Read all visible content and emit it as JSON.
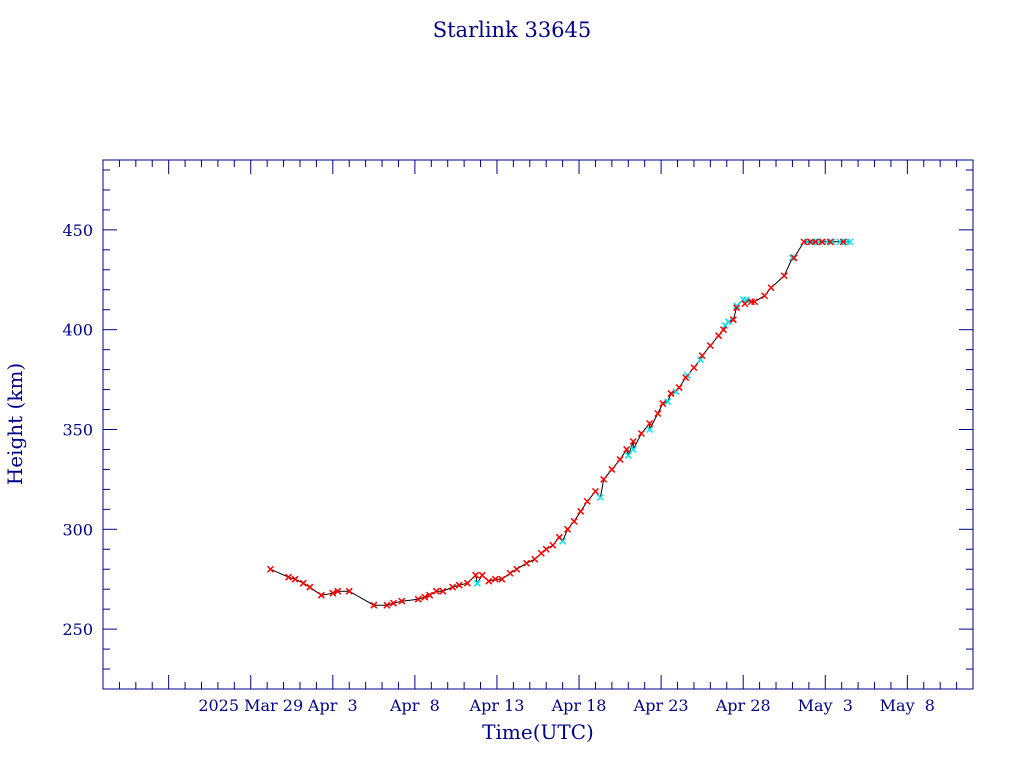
{
  "chart_data": {
    "type": "line",
    "title": "Starlink 33645",
    "xlabel": "Time(UTC)",
    "ylabel": "Height (km)",
    "x_unit": "day-of-year 2025",
    "xlim": [
      79,
      132
    ],
    "ylim": [
      220,
      485
    ],
    "x_ticks": [
      {
        "value": 88,
        "label": "2025 Mar 29"
      },
      {
        "value": 93,
        "label": "Apr  3"
      },
      {
        "value": 98,
        "label": "Apr  8"
      },
      {
        "value": 103,
        "label": "Apr 13"
      },
      {
        "value": 108,
        "label": "Apr 18"
      },
      {
        "value": 113,
        "label": "Apr 23"
      },
      {
        "value": 118,
        "label": "Apr 28"
      },
      {
        "value": 123,
        "label": "May  3"
      },
      {
        "value": 128,
        "label": "May  8"
      }
    ],
    "y_ticks": [
      250,
      300,
      350,
      400,
      450
    ],
    "grid": false,
    "legend": "none",
    "colors": {
      "axes": "#00008b",
      "line": "#000000",
      "marker_red": "#ff0000",
      "marker_cyan": "#00e5ee"
    },
    "series": [
      {
        "marker": "x",
        "x": [
          89.2,
          90.3,
          90.7,
          91.2,
          91.6,
          92.3,
          93.0,
          93.3,
          94.0,
          95.5,
          96.3,
          96.7,
          97.2,
          98.2,
          98.6,
          98.9,
          99.3,
          99.7,
          100.3,
          100.7,
          101.2,
          101.7,
          102.1,
          102.5,
          102.9,
          103.3,
          103.8,
          104.2,
          104.8,
          105.3,
          105.7,
          106.0,
          106.4,
          106.8,
          107.3,
          107.7,
          108.1,
          108.5,
          109.0,
          109.5,
          110.0,
          110.5,
          110.9,
          111.3,
          111.8,
          112.3,
          112.8,
          113.1,
          113.6,
          114.1,
          114.5,
          115.0,
          115.5,
          116.0,
          116.5,
          116.8,
          117.4,
          117.6,
          118.1,
          118.5,
          118.7,
          119.3,
          119.7,
          120.5,
          121.1,
          121.7,
          122.1,
          122.4,
          122.8,
          123.3,
          124.1
        ],
        "y": [
          280,
          276,
          275,
          273,
          271,
          267,
          268,
          269,
          269,
          262,
          262,
          263,
          264,
          265,
          266,
          267,
          269,
          269,
          271,
          272,
          273,
          277,
          277,
          274,
          275,
          275,
          278,
          280,
          283,
          285,
          288,
          290,
          292,
          296,
          300,
          304,
          309,
          314,
          319,
          325,
          330,
          335,
          340,
          344,
          348,
          353,
          358,
          363,
          368,
          371,
          376,
          381,
          387,
          392,
          397,
          400,
          405,
          411,
          413,
          414,
          414,
          417,
          421,
          427,
          436,
          444,
          444,
          444,
          444,
          444,
          444
        ]
      },
      {
        "marker": "x",
        "x": [
          101.8,
          107.0,
          109.3,
          111.0,
          111.3,
          112.3,
          113.4,
          113.9,
          114.6,
          115.4,
          116.0,
          116.9,
          117.1,
          117.6,
          118.0,
          118.2,
          121.0,
          121.9,
          122.2,
          122.4,
          122.6,
          122.8,
          123.1,
          123.4,
          123.9,
          124.3,
          124.5
        ],
        "y": [
          273,
          294,
          316,
          337,
          340,
          350,
          364,
          369,
          377,
          385,
          392,
          402,
          404,
          412,
          415,
          415,
          436,
          444,
          444,
          444,
          444,
          444,
          444,
          444,
          444,
          444,
          444
        ]
      }
    ]
  }
}
